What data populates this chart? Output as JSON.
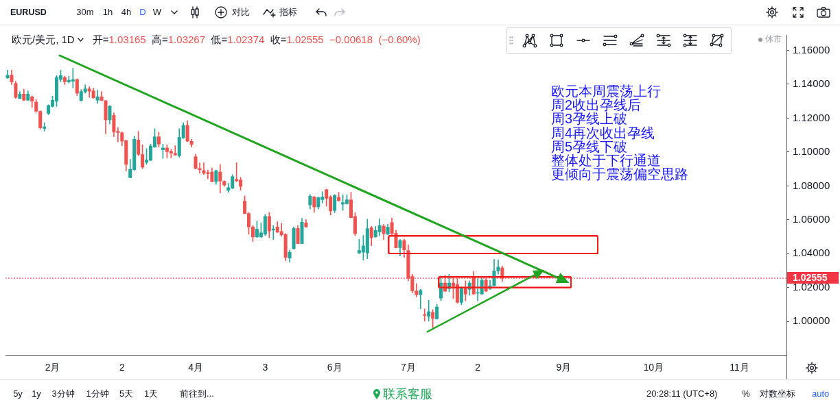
{
  "chart_data": {
    "type": "candlestick",
    "title": "欧元/美元, 1D",
    "subtitle": "开=1.03165 高=1.03267 低=1.02374 收=1.02555 −0.00618 (−0.60%)",
    "annotations": [
      "EURUSD",
      "30m",
      "1h",
      "4h",
      "D",
      "W",
      "对比",
      "指标",
      "休市",
      "5y",
      "1y",
      "3分钟",
      "1分钟",
      "5天",
      "1天",
      "前往到...",
      "联系客服",
      "20:28:11 (UTC+8)",
      "%",
      "对数坐标",
      "auto",
      "欧元本周震荡上行",
      "周2收出孕线后",
      "周3孕线上破",
      "周4再次收出孕线",
      "周5孕线下破",
      "整体处于下行通道",
      "更倾向于震荡偏空思路"
    ],
    "categories": [
      null,
      null,
      null,
      null,
      null,
      null,
      null,
      null,
      null,
      null,
      null,
      "2月",
      null,
      null,
      null,
      null,
      null,
      null,
      null,
      null,
      null,
      null,
      null,
      null,
      null,
      null,
      null,
      null,
      "2",
      null,
      null,
      null,
      null,
      null,
      null,
      null,
      null,
      null,
      null,
      null,
      null,
      null,
      null,
      null,
      null,
      null,
      "4月",
      null,
      null,
      null,
      null,
      null,
      null,
      null,
      null,
      null,
      null,
      null,
      null,
      null,
      null,
      null,
      null,
      "3",
      null,
      null,
      null,
      null,
      null,
      null,
      null,
      null,
      null,
      null,
      null,
      null,
      null,
      null,
      null,
      null,
      "6月",
      null,
      null,
      null,
      null,
      null,
      null,
      null,
      null,
      null,
      null,
      null,
      null,
      null,
      null,
      null,
      null,
      null,
      "7月",
      null,
      null,
      null,
      null,
      null,
      null,
      null,
      null,
      null,
      null,
      null,
      null,
      null,
      null,
      null,
      null,
      "2",
      null,
      null,
      null,
      null,
      null,
      null,
      null,
      null,
      null,
      null,
      null,
      null,
      null,
      null,
      null,
      null,
      null,
      null,
      null,
      null,
      "9月",
      null,
      null,
      null,
      null,
      null,
      null,
      null,
      null,
      null,
      null,
      null,
      null,
      null,
      null,
      null,
      null,
      null,
      null,
      null,
      null,
      null,
      "10月",
      null,
      null,
      null,
      null,
      null,
      null,
      null,
      null,
      null,
      null,
      null,
      null,
      null,
      null,
      null,
      null,
      null,
      null,
      null,
      null,
      "11月",
      null,
      null,
      null,
      null,
      null,
      null,
      null,
      null,
      null,
      null,
      null
    ],
    "ohlc": [
      [
        1.1437,
        1.1483,
        1.1435,
        1.1454
      ],
      [
        1.1454,
        1.1483,
        1.1398,
        1.1414
      ],
      [
        1.1405,
        1.1418,
        1.1316,
        1.1323
      ],
      [
        1.1316,
        1.1357,
        1.1314,
        1.1342
      ],
      [
        1.1342,
        1.1371,
        1.1303,
        1.1306
      ],
      [
        1.1306,
        1.1361,
        1.1303,
        1.1342
      ],
      [
        1.1326,
        1.1331,
        1.1263,
        1.13
      ],
      [
        1.1295,
        1.1309,
        1.1234,
        1.1241
      ],
      [
        1.124,
        1.1244,
        1.1135,
        1.1143
      ],
      [
        1.1139,
        1.1173,
        1.1123,
        1.1149
      ],
      [
        1.1228,
        1.1279,
        1.1221,
        1.1275
      ],
      [
        1.1269,
        1.133,
        1.1265,
        1.1306
      ],
      [
        1.13,
        1.1452,
        1.1269,
        1.144
      ],
      [
        1.1428,
        1.1483,
        1.1414,
        1.1452
      ],
      [
        1.144,
        1.1448,
        1.1398,
        1.1414
      ],
      [
        1.1414,
        1.1448,
        1.1407,
        1.1424
      ],
      [
        1.1418,
        1.1495,
        1.1378,
        1.1428
      ],
      [
        1.1428,
        1.1432,
        1.1333,
        1.1347
      ],
      [
        1.1304,
        1.1369,
        1.13,
        1.1357
      ],
      [
        1.1355,
        1.1397,
        1.1347,
        1.1373
      ],
      [
        1.1373,
        1.1385,
        1.1323,
        1.1359
      ],
      [
        1.1361,
        1.1377,
        1.1316,
        1.132
      ],
      [
        1.1306,
        1.1365,
        1.1287,
        1.1326
      ],
      [
        1.1326,
        1.1357,
        1.1303,
        1.1304
      ],
      [
        1.1303,
        1.1306,
        1.1107,
        1.119
      ],
      [
        1.119,
        1.1275,
        1.1166,
        1.1271
      ],
      [
        1.1216,
        1.1232,
        1.1091,
        1.1119
      ],
      [
        1.1122,
        1.1145,
        1.106,
        1.1115
      ],
      [
        1.1114,
        1.1119,
        1.1037,
        1.1064
      ],
      [
        1.1067,
        1.1071,
        1.0888,
        1.0927
      ],
      [
        1.0849,
        1.0957,
        1.0847,
        1.0898
      ],
      [
        1.0896,
        1.1094,
        1.0892,
        1.1075
      ],
      [
        1.1071,
        1.1122,
        1.0978,
        1.0986
      ],
      [
        1.0985,
        1.1043,
        1.0902,
        1.0911
      ],
      [
        1.0939,
        1.102,
        1.0927,
        1.0953
      ],
      [
        1.0951,
        1.1047,
        1.0949,
        1.1036
      ],
      [
        1.1029,
        1.1138,
        1.1027,
        1.109
      ],
      [
        1.109,
        1.1118,
        1.1029,
        1.1047
      ],
      [
        1.1013,
        1.1047,
        1.0962,
        1.1024
      ],
      [
        1.1024,
        1.1043,
        1.0966,
        1.1002
      ],
      [
        1.1004,
        1.1016,
        1.0966,
        1.0994
      ],
      [
        1.0992,
        1.1038,
        1.098,
        1.0982
      ],
      [
        1.0978,
        1.1138,
        1.097,
        1.1087
      ],
      [
        1.1083,
        1.1173,
        1.108,
        1.1157
      ],
      [
        1.1157,
        1.1185,
        1.1062,
        1.1064
      ],
      [
        1.1063,
        1.1075,
        1.1029,
        1.1045
      ],
      [
        1.0973,
        1.0988,
        1.09,
        1.0903
      ],
      [
        1.0903,
        1.0937,
        1.0875,
        1.0896
      ],
      [
        1.089,
        1.0937,
        1.0868,
        1.0875
      ],
      [
        1.0879,
        1.0894,
        1.0842,
        1.0872
      ],
      [
        1.0882,
        1.0906,
        1.0823,
        1.0825
      ],
      [
        1.0825,
        1.0894,
        1.0809,
        1.089
      ],
      [
        1.0882,
        1.0926,
        1.0758,
        1.0829
      ],
      [
        1.0827,
        1.0831,
        1.0797,
        1.0805
      ],
      [
        1.0774,
        1.0816,
        1.0762,
        1.079
      ],
      [
        1.0786,
        1.0867,
        1.0784,
        1.0855
      ],
      [
        1.0839,
        1.0937,
        1.0825,
        1.0829
      ],
      [
        1.0835,
        1.0851,
        1.0774,
        1.0797
      ],
      [
        1.071,
        1.0741,
        1.0635,
        1.0637
      ],
      [
        1.0637,
        1.0643,
        1.0515,
        1.0558
      ],
      [
        1.0558,
        1.0566,
        1.0472,
        1.0499
      ],
      [
        1.0499,
        1.0593,
        1.0495,
        1.0545
      ],
      [
        1.0499,
        1.0582,
        1.0495,
        1.0523
      ],
      [
        1.0515,
        1.0633,
        1.0507,
        1.062
      ],
      [
        1.062,
        1.0644,
        1.0495,
        1.0534
      ],
      [
        1.054,
        1.0566,
        1.0484,
        1.0546
      ],
      [
        1.0558,
        1.0589,
        1.0525,
        1.0527
      ],
      [
        1.0531,
        1.0578,
        1.0503,
        1.0511
      ],
      [
        1.0514,
        1.0519,
        1.0358,
        1.0378
      ],
      [
        1.0374,
        1.0421,
        1.035,
        1.0409
      ],
      [
        1.0429,
        1.0558,
        1.0427,
        1.0549
      ],
      [
        1.0549,
        1.0566,
        1.0458,
        1.046
      ],
      [
        1.046,
        1.0609,
        1.0458,
        1.0586
      ],
      [
        1.0582,
        1.0601,
        1.0556,
        1.0558
      ],
      [
        1.0688,
        1.075,
        1.0664,
        1.0739
      ],
      [
        1.0735,
        1.0739,
        1.0644,
        1.0676
      ],
      [
        1.0676,
        1.0735,
        1.0664,
        1.0731
      ],
      [
        1.0719,
        1.0766,
        1.0699,
        1.0735
      ],
      [
        1.0778,
        1.0782,
        1.068,
        1.0727
      ],
      [
        1.0735,
        1.0743,
        1.0629,
        1.0652
      ],
      [
        1.0655,
        1.075,
        1.0642,
        1.0744
      ],
      [
        1.0733,
        1.0763,
        1.0709,
        1.0714
      ],
      [
        1.0692,
        1.0748,
        1.0656,
        1.0702
      ],
      [
        1.0695,
        1.0748,
        1.0692,
        1.0718
      ],
      [
        1.0718,
        1.0763,
        1.0611,
        1.0613
      ],
      [
        1.062,
        1.0642,
        1.0506,
        1.0519
      ],
      [
        1.0404,
        1.0486,
        1.04,
        1.0419
      ],
      [
        1.0409,
        1.0508,
        1.0362,
        1.0446
      ],
      [
        1.0404,
        1.0604,
        1.0371,
        1.0548
      ],
      [
        1.0553,
        1.0561,
        1.0447,
        1.0495
      ],
      [
        1.0499,
        1.0561,
        1.0497,
        1.0538
      ],
      [
        1.0529,
        1.0607,
        1.0507,
        1.0567
      ],
      [
        1.0563,
        1.0574,
        1.0484,
        1.0519
      ],
      [
        1.0515,
        1.0574,
        1.0513,
        1.0557
      ],
      [
        1.0584,
        1.061,
        1.0508,
        1.0519
      ],
      [
        1.0521,
        1.0538,
        1.0434,
        1.0436
      ],
      [
        1.0436,
        1.0484,
        1.0387,
        1.0478
      ],
      [
        1.0478,
        1.0486,
        1.0378,
        1.0423
      ],
      [
        1.0419,
        1.0452,
        1.024,
        1.0256
      ],
      [
        1.0266,
        1.0279,
        1.0168,
        1.0181
      ],
      [
        1.018,
        1.0223,
        1.0145,
        1.0158
      ],
      [
        1.0158,
        1.019,
        1.0075,
        1.0184
      ],
      [
        1.0039,
        1.0074,
        1.0002,
        1.0036
      ],
      [
        1.0031,
        1.0125,
        1.0002,
        1.0058
      ],
      [
        1.0054,
        1.007,
        0.9952,
        1.0019
      ],
      [
        1.0015,
        1.0101,
        1.0013,
        1.0086
      ],
      [
        1.0138,
        1.0269,
        1.0122,
        1.0227
      ],
      [
        1.0227,
        1.0273,
        1.0175,
        1.0179
      ],
      [
        1.0194,
        1.0279,
        1.0175,
        1.0227
      ],
      [
        1.0227,
        1.0256,
        1.0135,
        1.0207
      ],
      [
        1.0218,
        1.0253,
        1.0109,
        1.0113
      ],
      [
        1.0113,
        1.0205,
        1.0099,
        1.0201
      ],
      [
        1.0201,
        1.024,
        1.0122,
        1.0162
      ],
      [
        1.019,
        1.024,
        1.0155,
        1.0227
      ],
      [
        1.0262,
        1.0295,
        1.016,
        1.0162
      ],
      [
        1.0167,
        1.0253,
        1.0122,
        1.0169
      ],
      [
        1.0162,
        1.0256,
        1.016,
        1.0244
      ],
      [
        1.0244,
        1.0253,
        1.0175,
        1.0179
      ],
      [
        1.0194,
        1.0243,
        1.0188,
        1.0211
      ],
      [
        1.0211,
        1.0367,
        1.0209,
        1.0298
      ],
      [
        1.0298,
        1.0364,
        1.0279,
        1.0321
      ],
      [
        1.03165,
        1.03267,
        1.02374,
        1.02555
      ],
      null,
      null,
      null,
      null,
      null,
      null,
      null,
      null,
      null,
      null,
      null,
      null,
      null,
      null,
      null,
      null,
      null,
      null,
      null,
      null,
      null,
      null,
      null,
      null,
      null,
      null,
      null,
      null,
      null,
      null,
      null,
      null,
      null,
      null,
      null,
      null,
      null,
      null,
      null,
      null,
      null,
      null,
      null,
      null,
      null,
      null,
      null,
      null,
      null,
      null,
      null,
      null,
      null,
      null,
      null,
      null,
      null,
      null,
      null,
      null,
      null,
      null,
      null,
      null,
      null,
      null,
      null,
      null,
      null
    ],
    "colors": [
      "#26a69a",
      "#ef5350",
      "#ef5350",
      "#26a69a",
      "#ef5350",
      "#26a69a",
      "#ef5350",
      "#ef5350",
      "#ef5350",
      "#26a69a",
      "#26a69a",
      "#26a69a",
      "#26a69a",
      "#26a69a",
      "#ef5350",
      "#26a69a",
      "#26a69a",
      "#ef5350",
      "#26a69a",
      "#26a69a",
      "#ef5350",
      "#ef5350",
      "#26a69a",
      "#ef5350",
      "#ef5350",
      "#26a69a",
      "#ef5350",
      "#ef5350",
      "#ef5350",
      "#ef5350",
      "#26a69a",
      "#26a69a",
      "#ef5350",
      "#ef5350",
      "#26a69a",
      "#26a69a",
      "#26a69a",
      "#ef5350",
      "#26a69a",
      "#ef5350",
      "#ef5350",
      "#ef5350",
      "#26a69a",
      "#26a69a",
      "#ef5350",
      "#ef5350",
      "#ef5350",
      "#ef5350",
      "#ef5350",
      "#ef5350",
      "#ef5350",
      "#26a69a",
      "#ef5350",
      "#ef5350",
      "#26a69a",
      "#26a69a",
      "#ef5350",
      "#ef5350",
      "#ef5350",
      "#ef5350",
      "#ef5350",
      "#26a69a",
      "#26a69a",
      "#26a69a",
      "#ef5350",
      "#26a69a",
      "#ef5350",
      "#ef5350",
      "#ef5350",
      "#26a69a",
      "#26a69a",
      "#ef5350",
      "#26a69a",
      "#ef5350",
      "#26a69a",
      "#ef5350",
      "#26a69a",
      "#26a69a",
      "#ef5350",
      "#ef5350",
      "#26a69a",
      "#ef5350",
      "#26a69a",
      "#26a69a",
      "#ef5350",
      "#ef5350",
      "#26a69a",
      "#26a69a",
      "#26a69a",
      "#ef5350",
      "#26a69a",
      "#26a69a",
      "#ef5350",
      "#26a69a",
      "#ef5350",
      "#ef5350",
      "#26a69a",
      "#ef5350",
      "#ef5350",
      "#ef5350",
      "#ef5350",
      "#26a69a",
      "#ef5350",
      "#26a69a",
      "#ef5350",
      "#26a69a",
      "#26a69a",
      "#ef5350",
      "#26a69a",
      "#ef5350",
      "#ef5350",
      "#26a69a",
      "#ef5350",
      "#26a69a",
      "#ef5350",
      "#26a69a",
      "#26a69a",
      "#ef5350",
      "#26a69a",
      "#26a69a",
      "#26a69a",
      "#ef5350",
      null,
      null,
      null,
      null,
      null,
      null,
      null,
      null,
      null,
      null,
      null,
      null,
      null,
      null,
      null,
      null,
      null,
      null,
      null,
      null,
      null,
      null,
      null,
      null,
      null,
      null,
      null,
      null,
      null,
      null,
      null,
      null,
      null,
      null,
      null,
      null,
      null,
      null,
      null,
      null,
      null,
      null,
      null,
      null,
      null,
      null,
      null,
      null,
      null,
      null,
      null,
      null,
      null,
      null,
      null,
      null,
      null,
      null,
      null,
      null,
      null,
      null,
      null,
      null,
      null,
      null,
      null,
      null,
      null
    ],
    "ylim": [
      0.9803,
      1.1691
    ],
    "yticks": [
      {
        "value": 1,
        "label": "1.00000"
      },
      {
        "value": 1.02,
        "label": "1.02000"
      },
      {
        "value": 1.04,
        "label": "1.04000"
      },
      {
        "value": 1.06,
        "label": "1.06000"
      },
      {
        "value": 1.08,
        "label": "1.08000"
      },
      {
        "value": 1.1,
        "label": "1.10000"
      },
      {
        "value": 1.12,
        "label": "1.12000"
      },
      {
        "value": 1.14,
        "label": "1.14000"
      },
      {
        "value": 1.16,
        "label": "1.16000"
      }
    ],
    "ref_lines": [
      {
        "axis": "y",
        "value": 1.02555,
        "label": "1.02555",
        "color": "#f23645",
        "line_style": "dotted"
      }
    ]
  }
}
